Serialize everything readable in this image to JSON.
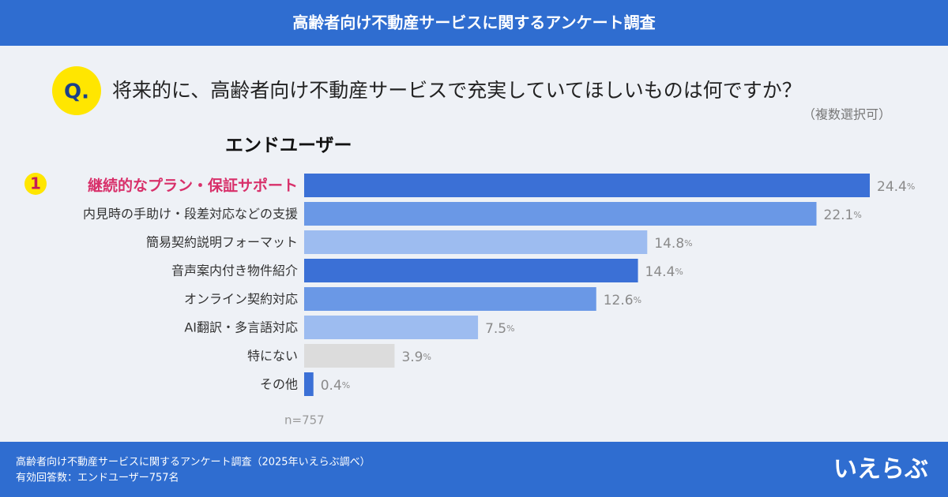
{
  "header": {
    "title": "高齢者向け不動産サービスに関するアンケート調査"
  },
  "question": {
    "marker": "Q.",
    "text": "将来的に、高齢者向け不動産サービスで充実していてほしいものは何ですか？",
    "note": "（複数選択可）"
  },
  "chart_data": {
    "type": "bar",
    "orientation": "horizontal",
    "title": "エンドユーザー",
    "categories": [
      "継続的なプラン・保証サポート",
      "内見時の手助け・段差対応などの支援",
      "簡易契約説明フォーマット",
      "音声案内付き物件紹介",
      "オンライン契約対応",
      "AI翻訳・多言語対応",
      "特にない",
      "その他"
    ],
    "values": [
      24.4,
      22.1,
      14.8,
      14.4,
      12.6,
      7.5,
      3.9,
      0.4
    ],
    "value_labels": [
      "24.4%",
      "22.1%",
      "14.8%",
      "14.4%",
      "12.6%",
      "7.5%",
      "3.9%",
      "0.4%"
    ],
    "colors": [
      "#3b70d6",
      "#6a98e6",
      "#9dbcf0",
      "#3b70d6",
      "#6a98e6",
      "#9dbcf0",
      "#dcdcdc",
      "#3b70d6"
    ],
    "rank_label": "1",
    "sample_note": "n=757"
  },
  "footer": {
    "lines": [
      "高齢者向け不動産サービスに関するアンケート調査（2025年いえらぶ調べ）",
      "有効回答数：エンドユーザー757名"
    ],
    "logo": "いえらぶ"
  }
}
